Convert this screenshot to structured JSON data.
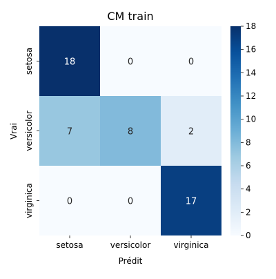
{
  "chart_data": {
    "type": "heatmap",
    "title": "CM train",
    "xlabel": "Prédit",
    "ylabel": "Vrai",
    "x_categories": [
      "setosa",
      "versicolor",
      "virginica"
    ],
    "y_categories": [
      "setosa",
      "versicolor",
      "virginica"
    ],
    "values": [
      [
        18,
        0,
        0
      ],
      [
        7,
        8,
        2
      ],
      [
        0,
        0,
        17
      ]
    ],
    "colorbar": {
      "min": 0,
      "max": 18,
      "ticks": [
        "0",
        "2",
        "4",
        "6",
        "8",
        "10",
        "12",
        "14",
        "16",
        "18"
      ],
      "colormap": "Blues"
    },
    "colors": {
      "low": "#f7fbff",
      "high": "#08306b"
    }
  }
}
